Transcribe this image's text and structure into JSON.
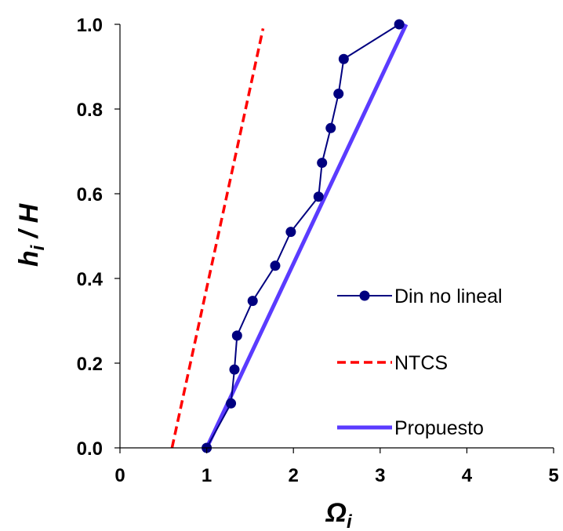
{
  "chart_data": {
    "type": "line",
    "xlabel": "Ω",
    "xlabel_sub": "i",
    "ylabel_parts": [
      "h",
      "i",
      " / H"
    ],
    "xlim": [
      0,
      5
    ],
    "ylim": [
      0,
      1.0
    ],
    "xticks": [
      0,
      1,
      2,
      3,
      4,
      5
    ],
    "xtick_labels": [
      "0",
      "1",
      "2",
      "3",
      "4",
      "5"
    ],
    "yticks": [
      0,
      0.2,
      0.4,
      0.6,
      0.8,
      1.0
    ],
    "ytick_labels": [
      "0.0",
      "0.2",
      "0.4",
      "0.6",
      "0.8",
      "1.0"
    ],
    "grid": false,
    "legend_position": "lower-right",
    "series": [
      {
        "name": "Din no lineal",
        "color": "#000080",
        "style": "solid-markers",
        "points": [
          [
            1.0,
            0.0
          ],
          [
            1.28,
            0.105
          ],
          [
            1.32,
            0.185
          ],
          [
            1.35,
            0.265
          ],
          [
            1.53,
            0.347
          ],
          [
            1.79,
            0.43
          ],
          [
            1.97,
            0.51
          ],
          [
            2.29,
            0.593
          ],
          [
            2.33,
            0.673
          ],
          [
            2.43,
            0.755
          ],
          [
            2.52,
            0.836
          ],
          [
            2.58,
            0.918
          ],
          [
            3.22,
            1.0
          ]
        ]
      },
      {
        "name": "NTCS",
        "color": "#ff0000",
        "style": "dashed",
        "points": [
          [
            0.6,
            0.0
          ],
          [
            1.65,
            0.99
          ]
        ]
      },
      {
        "name": "Propuesto",
        "color": "#5a3bff",
        "style": "solid-thick",
        "points": [
          [
            1.0,
            0.0
          ],
          [
            3.3,
            1.0
          ]
        ]
      }
    ]
  }
}
